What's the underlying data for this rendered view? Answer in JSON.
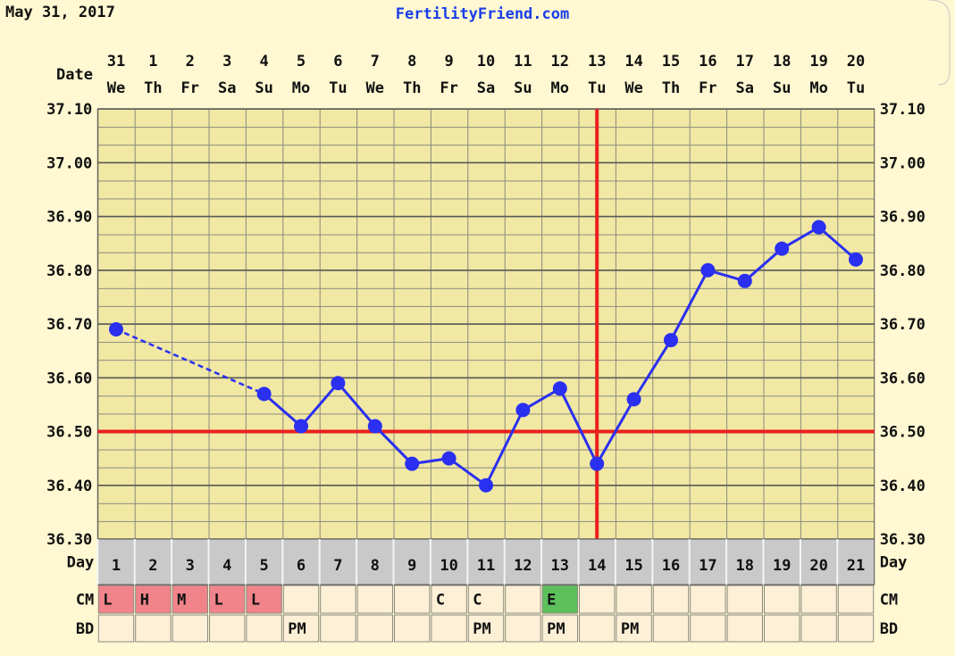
{
  "header": {
    "date": "May 31, 2017",
    "site": "FertilityFriend.com"
  },
  "chart_data": {
    "type": "line",
    "x_label": "Date",
    "categories": [
      "31",
      "1",
      "2",
      "3",
      "4",
      "5",
      "6",
      "7",
      "8",
      "9",
      "10",
      "11",
      "12",
      "13",
      "14",
      "15",
      "16",
      "17",
      "18",
      "19",
      "20"
    ],
    "weekdays": [
      "We",
      "Th",
      "Fr",
      "Sa",
      "Su",
      "Mo",
      "Tu",
      "We",
      "Th",
      "Fr",
      "Sa",
      "Su",
      "Mo",
      "Tu",
      "We",
      "Th",
      "Fr",
      "Sa",
      "Su",
      "Mo",
      "Tu"
    ],
    "series": [
      {
        "color": "#2a2ff0",
        "values": [
          36.69,
          null,
          null,
          null,
          36.57,
          36.51,
          36.59,
          36.51,
          36.44,
          36.45,
          36.4,
          36.54,
          36.58,
          36.44,
          36.56,
          36.67,
          36.8,
          36.78,
          36.84,
          36.88,
          36.82
        ]
      }
    ],
    "ylim": [
      36.3,
      37.1
    ],
    "yticks": [
      {
        "value": 36.3,
        "label": "36.30"
      },
      {
        "value": 36.4,
        "label": "36.40"
      },
      {
        "value": 36.5,
        "label": "36.50"
      },
      {
        "value": 36.6,
        "label": "36.60"
      },
      {
        "value": 36.7,
        "label": "36.70"
      },
      {
        "value": 36.8,
        "label": "36.80"
      },
      {
        "value": 36.9,
        "label": "36.90"
      },
      {
        "value": 37.0,
        "label": "37.00"
      },
      {
        "value": 37.1,
        "label": "37.10"
      }
    ],
    "grid": true,
    "coverline": 36.5,
    "ovulation_index": 13,
    "line_color": "#e8201e",
    "rows": [
      {
        "label": "Day",
        "cells": [
          1,
          2,
          3,
          4,
          5,
          6,
          7,
          8,
          9,
          10,
          11,
          12,
          13,
          14,
          15,
          16,
          17,
          18,
          19,
          20,
          21
        ]
      },
      {
        "label": "CM",
        "cells": [
          "L",
          "H",
          "M",
          "L",
          "L",
          null,
          null,
          null,
          null,
          "C",
          "C",
          null,
          "E",
          null,
          null,
          null,
          null,
          null,
          null,
          null,
          null
        ]
      },
      {
        "label": "BD",
        "cells": [
          null,
          null,
          null,
          null,
          null,
          "PM",
          null,
          null,
          null,
          null,
          "PM",
          null,
          "PM",
          null,
          "PM",
          null,
          null,
          null,
          null,
          null,
          null
        ]
      }
    ],
    "cell_colors": {
      "L": "#f0848a",
      "H": "#f0848a",
      "M": "#f0848a",
      "E": "#5cc05c"
    }
  }
}
